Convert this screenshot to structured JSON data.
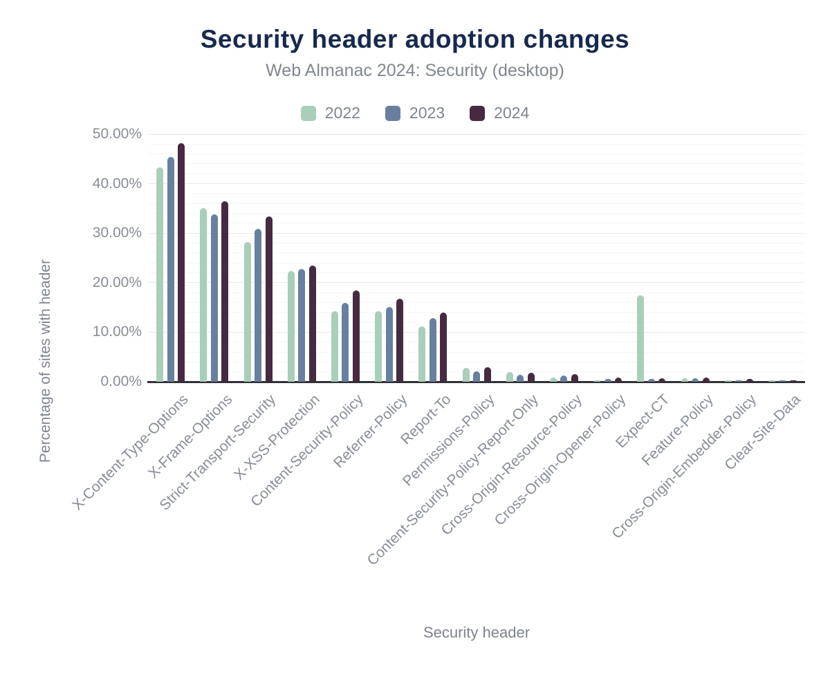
{
  "chart_data": {
    "type": "bar",
    "title": "Security header adoption changes",
    "subtitle": "Web Almanac 2024: Security (desktop)",
    "xlabel": "Security header",
    "ylabel": "Percentage of sites with header",
    "ylim": [
      0,
      50
    ],
    "y_major_step": 10,
    "y_minor_step": 2,
    "y_tick_labels": [
      "0.00%",
      "10.00%",
      "20.00%",
      "30.00%",
      "40.00%",
      "50.00%"
    ],
    "grid": true,
    "legend_position": "top",
    "categories": [
      "X-Content-Type-Options",
      "X-Frame-Options",
      "Strict-Transport-Security",
      "X-XSS-Protection",
      "Content-Security-Policy",
      "Referrer-Policy",
      "Report-To",
      "Permissions-Policy",
      "Content-Security-Policy-Report-Only",
      "Cross-Origin-Resource-Policy",
      "Cross-Origin-Opener-Policy",
      "Expect-CT",
      "Feature-Policy",
      "Cross-Origin-Embedder-Policy",
      "Clear-Site-Data"
    ],
    "series": [
      {
        "name": "2022",
        "color": "#a9ceba",
        "values": [
          43.3,
          35.1,
          28.2,
          22.4,
          14.3,
          14.3,
          11.2,
          2.8,
          2.0,
          0.9,
          0.2,
          17.4,
          0.7,
          0.2,
          0.2
        ]
      },
      {
        "name": "2023",
        "color": "#68809f",
        "values": [
          45.4,
          33.8,
          30.8,
          22.7,
          15.9,
          15.1,
          12.8,
          2.1,
          1.4,
          1.2,
          0.5,
          0.6,
          0.7,
          0.3,
          0.3
        ]
      },
      {
        "name": "2024",
        "color": "#462a40",
        "values": [
          48.2,
          36.5,
          33.4,
          23.4,
          18.4,
          16.8,
          13.9,
          2.9,
          1.8,
          1.5,
          0.8,
          0.7,
          0.8,
          0.5,
          0.3
        ]
      }
    ],
    "colors": {
      "title": "#17294d",
      "subtitle": "#81878f",
      "axis_text": "#878d97",
      "axis_line": "#2f3035",
      "grid_major": "#e8e9ec",
      "grid_minor": "#f4f5f7",
      "background": "#ffffff"
    }
  }
}
